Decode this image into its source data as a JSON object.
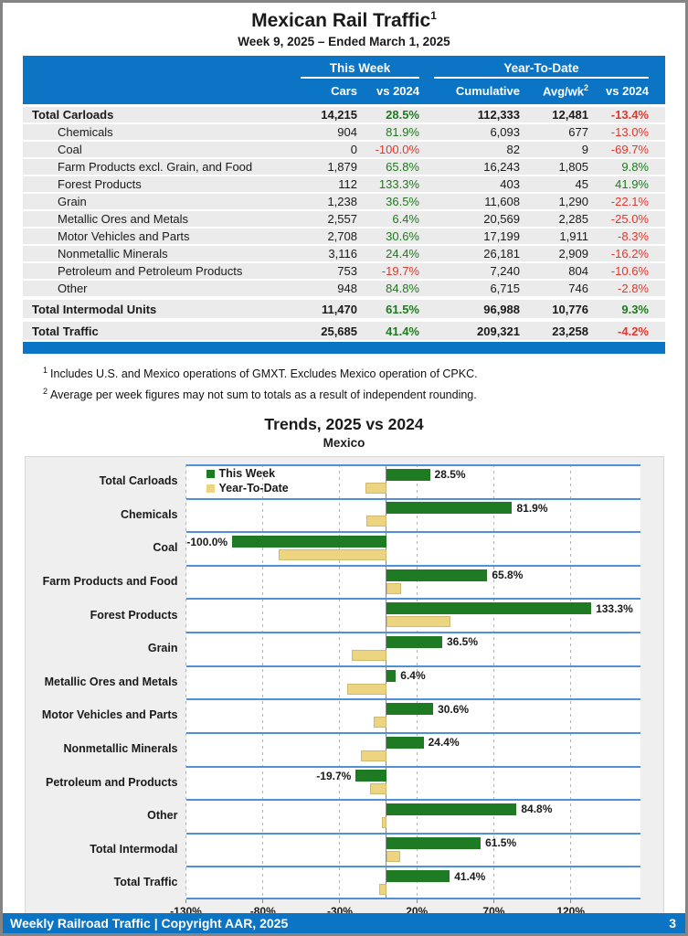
{
  "header": {
    "title": "Mexican Rail Traffic",
    "title_sup": "1",
    "subtitle": "Week 9, 2025 – Ended March 1, 2025"
  },
  "table": {
    "group_this_week": "This Week",
    "group_ytd": "Year-To-Date",
    "col_cars": "Cars",
    "col_vs2024_week": "vs 2024",
    "col_cumulative": "Cumulative",
    "col_avgwk": "Avg/wk",
    "col_avgwk_sup": "2",
    "col_vs2024_ytd": "vs 2024",
    "rows": [
      {
        "label": "Total Carloads",
        "bold": true,
        "indent": false,
        "spaced": false,
        "cars": "14,215",
        "vs_week": "28.5%",
        "cumulative": "112,333",
        "avg_wk": "12,481",
        "vs_ytd": "-13.4%"
      },
      {
        "label": "Chemicals",
        "bold": false,
        "indent": true,
        "spaced": false,
        "cars": "904",
        "vs_week": "81.9%",
        "cumulative": "6,093",
        "avg_wk": "677",
        "vs_ytd": "-13.0%"
      },
      {
        "label": "Coal",
        "bold": false,
        "indent": true,
        "spaced": false,
        "cars": "0",
        "vs_week": "-100.0%",
        "cumulative": "82",
        "avg_wk": "9",
        "vs_ytd": "-69.7%"
      },
      {
        "label": "Farm Products excl. Grain, and Food",
        "bold": false,
        "indent": true,
        "spaced": false,
        "cars": "1,879",
        "vs_week": "65.8%",
        "cumulative": "16,243",
        "avg_wk": "1,805",
        "vs_ytd": "9.8%"
      },
      {
        "label": "Forest Products",
        "bold": false,
        "indent": true,
        "spaced": false,
        "cars": "112",
        "vs_week": "133.3%",
        "cumulative": "403",
        "avg_wk": "45",
        "vs_ytd": "41.9%"
      },
      {
        "label": "Grain",
        "bold": false,
        "indent": true,
        "spaced": false,
        "cars": "1,238",
        "vs_week": "36.5%",
        "cumulative": "11,608",
        "avg_wk": "1,290",
        "vs_ytd": "-22.1%"
      },
      {
        "label": "Metallic Ores and Metals",
        "bold": false,
        "indent": true,
        "spaced": false,
        "cars": "2,557",
        "vs_week": "6.4%",
        "cumulative": "20,569",
        "avg_wk": "2,285",
        "vs_ytd": "-25.0%"
      },
      {
        "label": "Motor Vehicles and Parts",
        "bold": false,
        "indent": true,
        "spaced": false,
        "cars": "2,708",
        "vs_week": "30.6%",
        "cumulative": "17,199",
        "avg_wk": "1,911",
        "vs_ytd": "-8.3%"
      },
      {
        "label": "Nonmetallic Minerals",
        "bold": false,
        "indent": true,
        "spaced": false,
        "cars": "3,116",
        "vs_week": "24.4%",
        "cumulative": "26,181",
        "avg_wk": "2,909",
        "vs_ytd": "-16.2%"
      },
      {
        "label": "Petroleum and Petroleum Products",
        "bold": false,
        "indent": true,
        "spaced": false,
        "cars": "753",
        "vs_week": "-19.7%",
        "cumulative": "7,240",
        "avg_wk": "804",
        "vs_ytd": "-10.6%"
      },
      {
        "label": "Other",
        "bold": false,
        "indent": true,
        "spaced": false,
        "cars": "948",
        "vs_week": "84.8%",
        "cumulative": "6,715",
        "avg_wk": "746",
        "vs_ytd": "-2.8%"
      },
      {
        "label": "Total Intermodal Units",
        "bold": true,
        "indent": false,
        "spaced": true,
        "cars": "11,470",
        "vs_week": "61.5%",
        "cumulative": "96,988",
        "avg_wk": "10,776",
        "vs_ytd": "9.3%"
      },
      {
        "label": "Total Traffic",
        "bold": true,
        "indent": false,
        "spaced": true,
        "cars": "25,685",
        "vs_week": "41.4%",
        "cumulative": "209,321",
        "avg_wk": "23,258",
        "vs_ytd": "-4.2%"
      }
    ]
  },
  "footnotes": [
    {
      "sup": "1",
      "text": "Includes U.S. and Mexico operations of GMXT. Excludes Mexico operation of CPKC."
    },
    {
      "sup": "2",
      "text": "Average per week figures may not sum to totals as a result of independent rounding."
    }
  ],
  "chart_data": {
    "type": "bar",
    "orientation": "horizontal",
    "title": "Trends, 2025 vs 2024",
    "subtitle": "Mexico",
    "legend_position": "top-left-inside",
    "grid": "dashed-vertical",
    "categories": [
      "Total Carloads",
      "Chemicals",
      "Coal",
      "Farm Products and Food",
      "Forest Products",
      "Grain",
      "Metallic Ores and Metals",
      "Motor Vehicles and Parts",
      "Nonmetallic Minerals",
      "Petroleum and Products",
      "Other",
      "Total Intermodal",
      "Total Traffic"
    ],
    "series": [
      {
        "name": "This Week",
        "color": "#1e7b24",
        "values": [
          28.5,
          81.9,
          -100.0,
          65.8,
          133.3,
          36.5,
          6.4,
          30.6,
          24.4,
          -19.7,
          84.8,
          61.5,
          41.4
        ]
      },
      {
        "name": "Year-To-Date",
        "color": "#ecd480",
        "values": [
          -13.4,
          -13.0,
          -69.7,
          9.8,
          41.9,
          -22.1,
          -25.0,
          -8.3,
          -16.2,
          -10.6,
          -2.8,
          9.3,
          -4.2
        ]
      }
    ],
    "bar_labels": [
      "28.5%",
      "81.9%",
      "-100.0%",
      "65.8%",
      "133.3%",
      "36.5%",
      "6.4%",
      "30.6%",
      "24.4%",
      "-19.7%",
      "84.8%",
      "61.5%",
      "41.4%"
    ],
    "xlim": [
      -130,
      165
    ],
    "x_ticks": [
      {
        "value": -130,
        "label": "-130%"
      },
      {
        "value": -80,
        "label": "-80%"
      },
      {
        "value": -30,
        "label": "-30%"
      },
      {
        "value": 20,
        "label": "20%"
      },
      {
        "value": 70,
        "label": "70%"
      },
      {
        "value": 120,
        "label": "120%"
      }
    ]
  },
  "footer": {
    "text": "Weekly Railroad Traffic | Copyright AAR, 2025",
    "page": "3"
  },
  "colors": {
    "accent_blue": "#0c74c4",
    "positive_green": "#1e7a1e",
    "negative_red": "#e3362c",
    "bar_green": "#1e7b24",
    "bar_tan": "#ecd480",
    "band_line_blue": "#4f90d8",
    "row_gray": "#ebebeb"
  }
}
